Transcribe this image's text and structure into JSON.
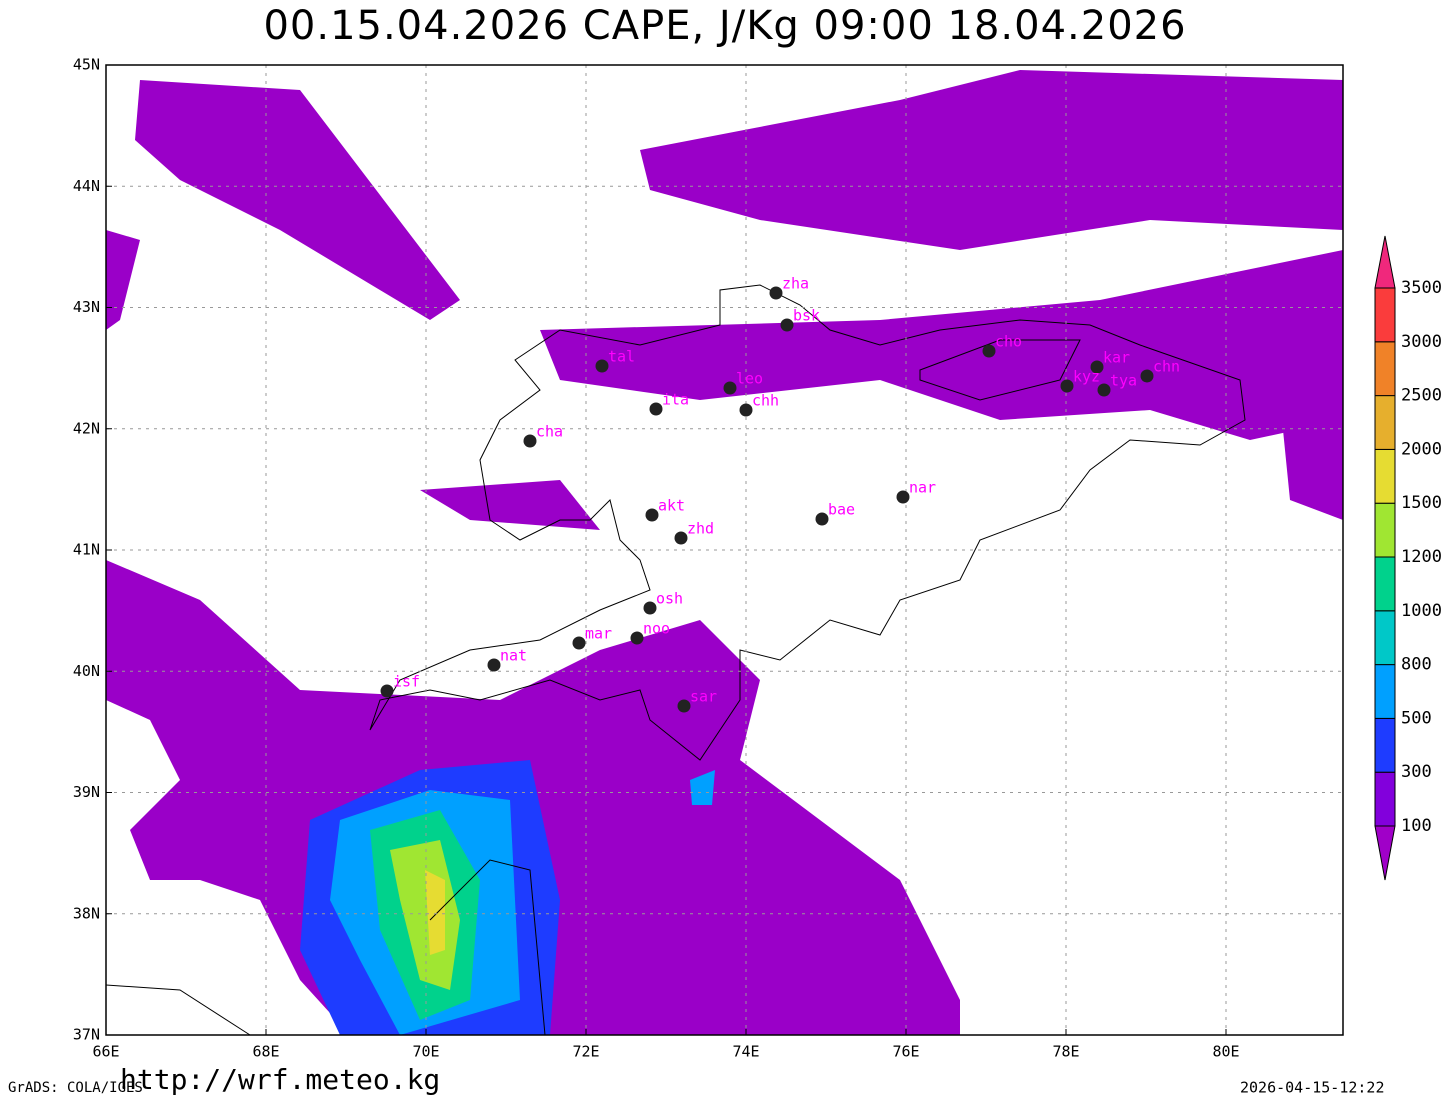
{
  "header": {
    "title": "00.15.04.2026 CAPE, J/Kg 09:00 18.04.2026"
  },
  "map": {
    "x_labels": [
      "66E",
      "68E",
      "70E",
      "72E",
      "74E",
      "76E",
      "78E",
      "80E"
    ],
    "y_labels": [
      "45N",
      "44N",
      "43N",
      "42N",
      "41N",
      "40N",
      "39N",
      "38N",
      "37N"
    ],
    "stations": [
      "zha",
      "bsk",
      "cho",
      "kar",
      "kyz",
      "tya",
      "chn",
      "tal",
      "leo",
      "chh",
      "ita",
      "cha",
      "nar",
      "bae",
      "akt",
      "zhd",
      "osh",
      "noo",
      "mar",
      "nat",
      "isf",
      "sar"
    ]
  },
  "colorbar": {
    "levels": [
      100,
      300,
      500,
      800,
      1000,
      1200,
      1500,
      2000,
      2500,
      3000,
      3500
    ],
    "colors": [
      "#a000c8",
      "#8200dc",
      "#1e3cff",
      "#00a0ff",
      "#00c8c8",
      "#00d28c",
      "#a0e632",
      "#e6dc32",
      "#e6af2d",
      "#f08228",
      "#fa3c3c",
      "#f0287c"
    ]
  },
  "footer": {
    "grads": "GrADS: COLA/IGES",
    "url": "http://wrf.meteo.kg",
    "timestamp": "2026-04-15-12:22"
  }
}
